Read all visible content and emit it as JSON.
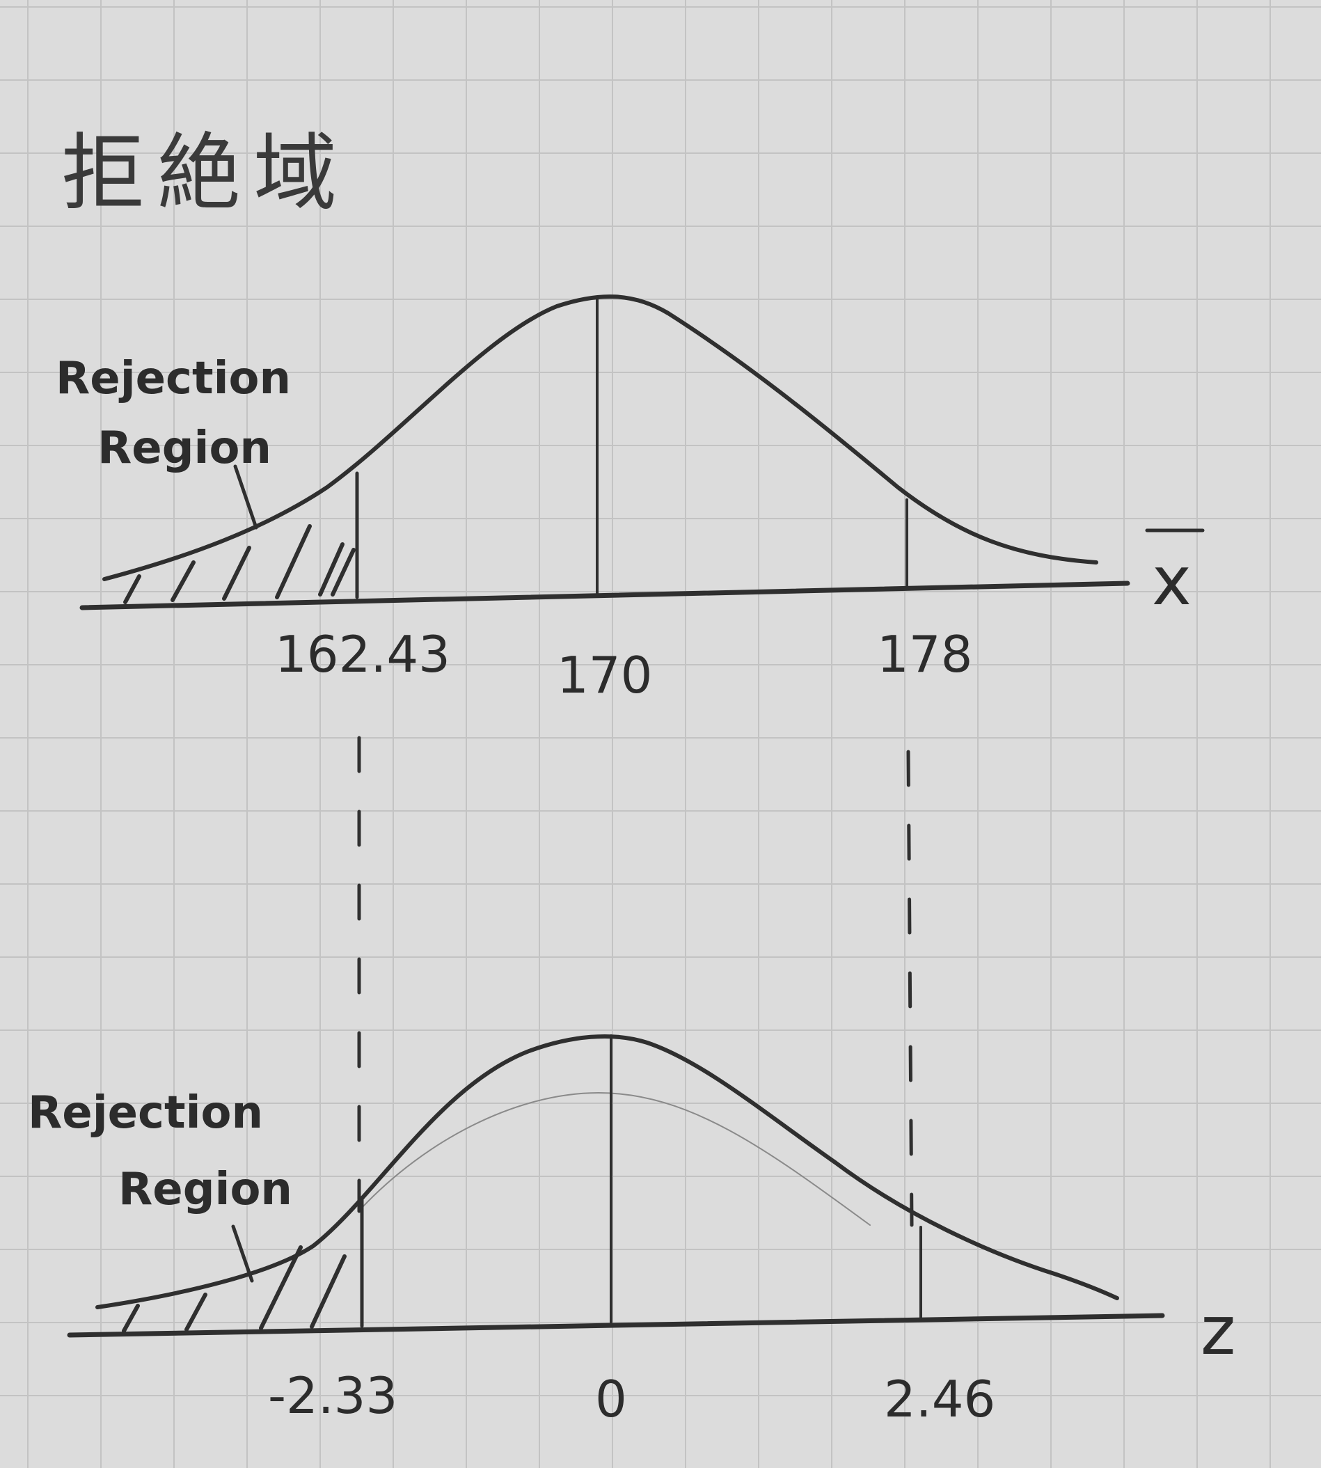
{
  "title": "拒絶域",
  "top_plot": {
    "axis_variable": "x",
    "axis_variable_overline": true,
    "rejection_label": [
      "Rejection",
      "Region"
    ],
    "ticks": [
      "162.43",
      "170",
      "178"
    ]
  },
  "bottom_plot": {
    "axis_variable": "z",
    "rejection_label": [
      "Rejection",
      "Region"
    ],
    "ticks": [
      "-2.33",
      "0",
      "2.46"
    ]
  },
  "colors": {
    "paper": "#dcdcdc",
    "grid": "#c3c3c3",
    "pencil": "#2f2f2f"
  }
}
